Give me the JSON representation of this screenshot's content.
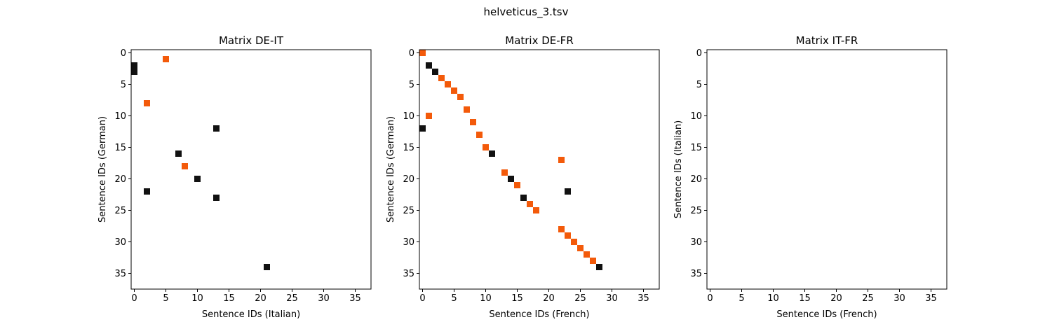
{
  "figure": {
    "suptitle": "helveticus_3.tsv"
  },
  "colors": {
    "orange": "#f35a0a",
    "black": "#111111"
  },
  "chart_data": [
    {
      "type": "heatmap",
      "title": "Matrix DE-IT",
      "xlabel": "Sentence IDs (Italian)",
      "ylabel": "Sentence IDs (German)",
      "xlim": [
        -0.5,
        37.5
      ],
      "ylim": [
        37.5,
        -0.5
      ],
      "xticks": [
        0,
        5,
        10,
        15,
        20,
        25,
        30,
        35
      ],
      "yticks": [
        0,
        5,
        10,
        15,
        20,
        25,
        30,
        35
      ],
      "grid": false,
      "cells": [
        {
          "x": 5,
          "y": 1,
          "color": "orange"
        },
        {
          "x": 0,
          "y": 2,
          "color": "black"
        },
        {
          "x": 0,
          "y": 3,
          "color": "black"
        },
        {
          "x": 2,
          "y": 8,
          "color": "orange"
        },
        {
          "x": 13,
          "y": 12,
          "color": "black"
        },
        {
          "x": 7,
          "y": 16,
          "color": "black"
        },
        {
          "x": 8,
          "y": 18,
          "color": "orange"
        },
        {
          "x": 10,
          "y": 20,
          "color": "black"
        },
        {
          "x": 2,
          "y": 22,
          "color": "black"
        },
        {
          "x": 13,
          "y": 23,
          "color": "black"
        },
        {
          "x": 21,
          "y": 34,
          "color": "black"
        }
      ]
    },
    {
      "type": "heatmap",
      "title": "Matrix DE-FR",
      "xlabel": "Sentence IDs (French)",
      "ylabel": "Sentence IDs (German)",
      "xlim": [
        -0.5,
        37.5
      ],
      "ylim": [
        37.5,
        -0.5
      ],
      "xticks": [
        0,
        5,
        10,
        15,
        20,
        25,
        30,
        35
      ],
      "yticks": [
        0,
        5,
        10,
        15,
        20,
        25,
        30,
        35
      ],
      "grid": false,
      "cells": [
        {
          "x": 0,
          "y": 0,
          "color": "orange"
        },
        {
          "x": 1,
          "y": 2,
          "color": "black"
        },
        {
          "x": 2,
          "y": 3,
          "color": "black"
        },
        {
          "x": 3,
          "y": 4,
          "color": "orange"
        },
        {
          "x": 4,
          "y": 5,
          "color": "orange"
        },
        {
          "x": 5,
          "y": 6,
          "color": "orange"
        },
        {
          "x": 6,
          "y": 7,
          "color": "orange"
        },
        {
          "x": 7,
          "y": 9,
          "color": "orange"
        },
        {
          "x": 1,
          "y": 10,
          "color": "orange"
        },
        {
          "x": 8,
          "y": 11,
          "color": "orange"
        },
        {
          "x": 0,
          "y": 12,
          "color": "black"
        },
        {
          "x": 9,
          "y": 13,
          "color": "orange"
        },
        {
          "x": 10,
          "y": 15,
          "color": "orange"
        },
        {
          "x": 11,
          "y": 16,
          "color": "black"
        },
        {
          "x": 22,
          "y": 17,
          "color": "orange"
        },
        {
          "x": 13,
          "y": 19,
          "color": "orange"
        },
        {
          "x": 14,
          "y": 20,
          "color": "black"
        },
        {
          "x": 15,
          "y": 21,
          "color": "orange"
        },
        {
          "x": 23,
          "y": 22,
          "color": "black"
        },
        {
          "x": 16,
          "y": 23,
          "color": "black"
        },
        {
          "x": 17,
          "y": 24,
          "color": "orange"
        },
        {
          "x": 18,
          "y": 25,
          "color": "orange"
        },
        {
          "x": 22,
          "y": 28,
          "color": "orange"
        },
        {
          "x": 23,
          "y": 29,
          "color": "orange"
        },
        {
          "x": 24,
          "y": 30,
          "color": "orange"
        },
        {
          "x": 25,
          "y": 31,
          "color": "orange"
        },
        {
          "x": 26,
          "y": 32,
          "color": "orange"
        },
        {
          "x": 27,
          "y": 33,
          "color": "orange"
        },
        {
          "x": 28,
          "y": 34,
          "color": "black"
        }
      ]
    },
    {
      "type": "heatmap",
      "title": "Matrix IT-FR",
      "xlabel": "Sentence IDs (French)",
      "ylabel": "Sentence IDs (Italian)",
      "xlim": [
        -0.5,
        37.5
      ],
      "ylim": [
        37.5,
        -0.5
      ],
      "xticks": [
        0,
        5,
        10,
        15,
        20,
        25,
        30,
        35
      ],
      "yticks": [
        0,
        5,
        10,
        15,
        20,
        25,
        30,
        35
      ],
      "grid": false,
      "cells": []
    }
  ]
}
